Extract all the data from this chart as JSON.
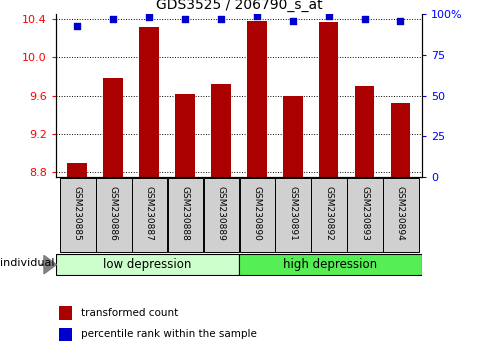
{
  "title": "GDS3525 / 206790_s_at",
  "samples": [
    "GSM230885",
    "GSM230886",
    "GSM230887",
    "GSM230888",
    "GSM230889",
    "GSM230890",
    "GSM230891",
    "GSM230892",
    "GSM230893",
    "GSM230894"
  ],
  "transformed_count": [
    8.9,
    9.78,
    10.32,
    9.62,
    9.72,
    10.38,
    9.6,
    10.37,
    9.7,
    9.52
  ],
  "percentile_rank": [
    93,
    97,
    98,
    97,
    97,
    99,
    96,
    99,
    97,
    96
  ],
  "ylim_left": [
    8.75,
    10.45
  ],
  "ylim_right": [
    0,
    100
  ],
  "yticks_left": [
    8.8,
    9.2,
    9.6,
    10.0,
    10.4
  ],
  "yticks_right": [
    0,
    25,
    50,
    75,
    100
  ],
  "bar_color": "#AA0000",
  "scatter_color": "#0000CC",
  "group1_label": "low depression",
  "group2_label": "high depression",
  "group1_color": "#CCFFCC",
  "group2_color": "#55EE55",
  "individual_label": "individual",
  "legend_bar": "transformed count",
  "legend_scatter": "percentile rank within the sample",
  "xlabel_area_color": "#D0D0D0",
  "n_group1": 5,
  "n_group2": 5
}
